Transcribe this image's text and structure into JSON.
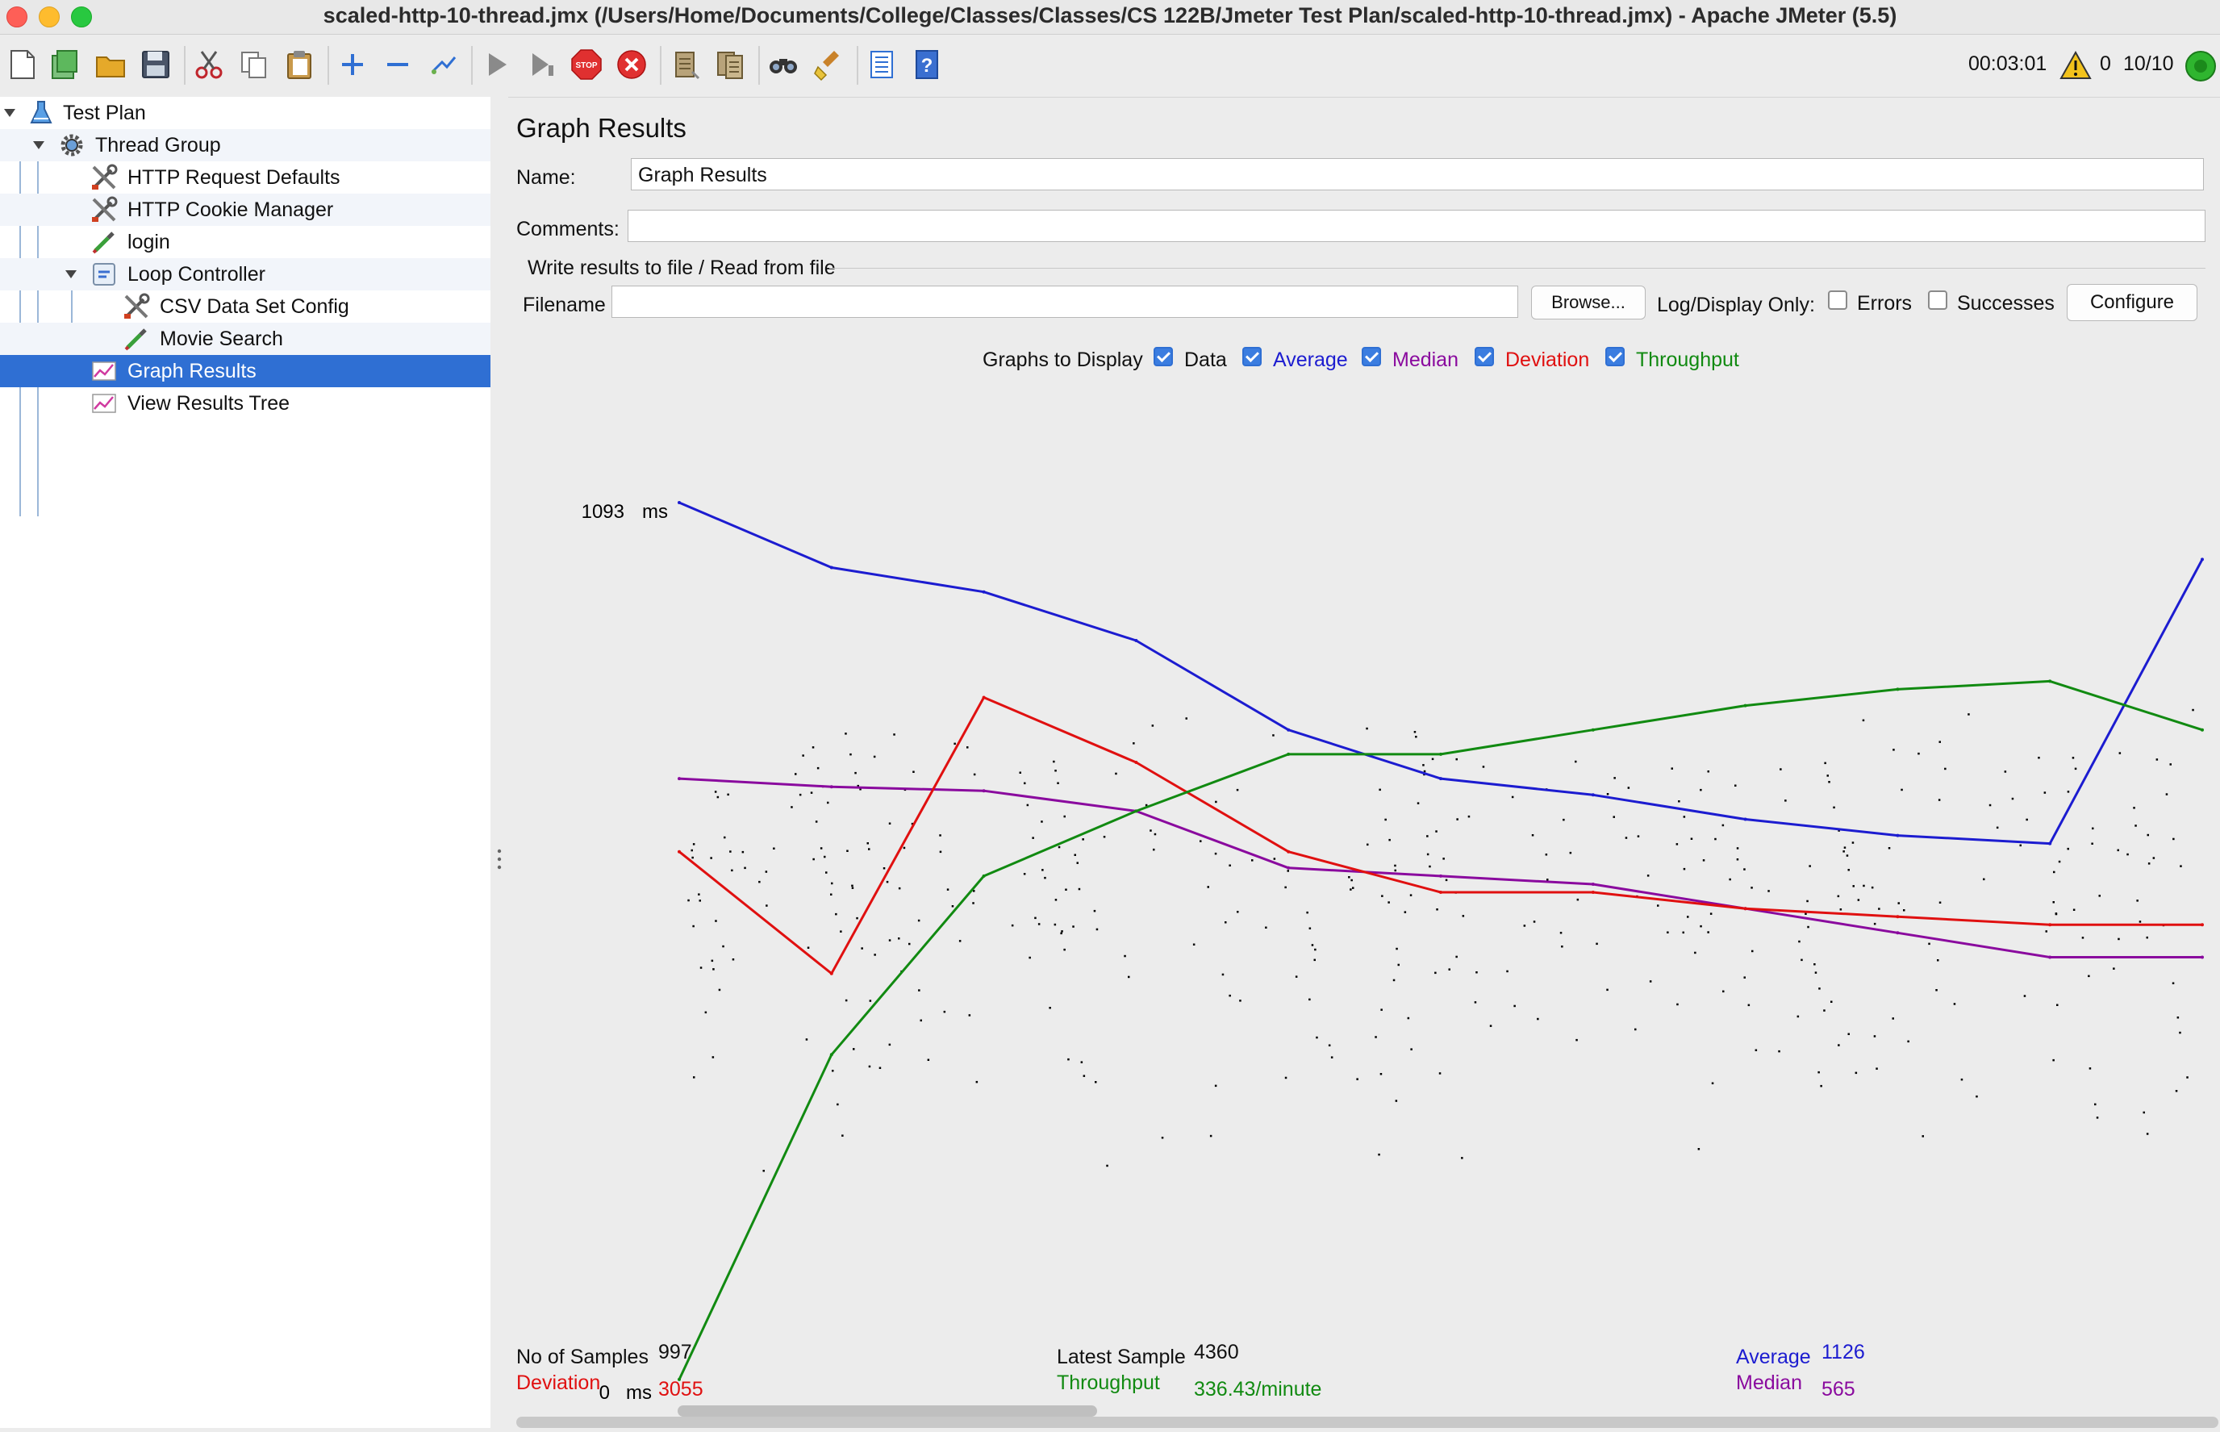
{
  "window": {
    "title": "scaled-http-10-thread.jmx (/Users/Home/Documents/College/Classes/Classes/CS 122B/Jmeter Test Plan/scaled-http-10-thread.jmx) - Apache JMeter (5.5)"
  },
  "toolbar": {
    "icons": [
      "new-icon",
      "templates-icon",
      "open-icon",
      "save-icon",
      "cut-icon",
      "copy-icon",
      "paste-icon",
      "expand-icon",
      "collapse-icon",
      "toggle-icon",
      "start-icon",
      "start-no-pauses-icon",
      "stop-icon",
      "shutdown-icon",
      "clear-icon",
      "clear-all-icon",
      "search-icon",
      "reset-search-icon",
      "function-helper-icon",
      "help-icon"
    ],
    "elapsed_time": "00:03:01",
    "warning_count": "0",
    "threads": "10/10",
    "colors": {
      "stop": "#e03030",
      "run_indicator": "#2fb52f",
      "warning": "#f2c21b"
    }
  },
  "tree": {
    "nodes": [
      {
        "label": "Test Plan",
        "icon": "flask-icon",
        "level": 0,
        "expanded": true
      },
      {
        "label": "Thread Group",
        "icon": "gear-icon",
        "level": 1,
        "expanded": true
      },
      {
        "label": "HTTP Request Defaults",
        "icon": "wrench-icon",
        "level": 2
      },
      {
        "label": "HTTP Cookie Manager",
        "icon": "wrench-icon",
        "level": 2
      },
      {
        "label": "login",
        "icon": "pipette-icon",
        "level": 2
      },
      {
        "label": "Loop Controller",
        "icon": "loop-controller-icon",
        "level": 2,
        "expanded": true
      },
      {
        "label": "CSV Data Set Config",
        "icon": "wrench-icon",
        "level": 3
      },
      {
        "label": "Movie Search",
        "icon": "pipette-icon",
        "level": 3
      },
      {
        "label": "Graph Results",
        "icon": "graph-icon",
        "level": 2,
        "selected": true
      },
      {
        "label": "View Results Tree",
        "icon": "graph-icon",
        "level": 2
      }
    ]
  },
  "panel": {
    "title": "Graph Results",
    "name_label": "Name:",
    "name_value": "Graph Results",
    "comments_label": "Comments:",
    "comments_value": "",
    "file_group_label": "Write results to file / Read from file",
    "filename_label": "Filename",
    "filename_value": "",
    "browse_label": "Browse...",
    "log_display_label": "Log/Display Only:",
    "errors_label": "Errors",
    "errors_checked": false,
    "successes_label": "Successes",
    "successes_checked": false,
    "configure_label": "Configure"
  },
  "graphs_to_display": {
    "label": "Graphs to Display",
    "options": [
      {
        "label": "Data",
        "checked": true,
        "color": "#000000"
      },
      {
        "label": "Average",
        "checked": true,
        "color": "#1c1cd0"
      },
      {
        "label": "Median",
        "checked": true,
        "color": "#8a0a9e"
      },
      {
        "label": "Deviation",
        "checked": true,
        "color": "#e01010"
      },
      {
        "label": "Throughput",
        "checked": true,
        "color": "#118a11"
      }
    ]
  },
  "chart_data": {
    "type": "line",
    "y_max_label": "1093",
    "y_max_unit": "ms",
    "y_min_label": "0",
    "y_min_unit": "ms",
    "ylim": [
      0,
      1093
    ],
    "x": [
      0,
      10,
      20,
      30,
      40,
      50,
      60,
      70,
      80,
      90,
      100
    ],
    "series": [
      {
        "name": "Average",
        "color": "#1c1cd0",
        "values": [
          1100,
          1020,
          990,
          930,
          820,
          760,
          740,
          710,
          690,
          680,
          1030
        ]
      },
      {
        "name": "Median",
        "color": "#8a0a9e",
        "values": [
          760,
          750,
          745,
          720,
          650,
          640,
          630,
          600,
          570,
          540,
          540
        ]
      },
      {
        "name": "Deviation",
        "color": "#e01010",
        "values": [
          670,
          520,
          860,
          780,
          670,
          620,
          620,
          600,
          590,
          580,
          580
        ]
      },
      {
        "name": "Throughput",
        "color": "#118a11",
        "values": [
          20,
          420,
          640,
          720,
          790,
          790,
          820,
          850,
          870,
          880,
          820
        ]
      }
    ]
  },
  "stats": {
    "samples_label": "No of Samples",
    "samples_value": "997",
    "latest_label": "Latest Sample",
    "latest_value": "4360",
    "average_label": "Average",
    "average_value": "1126",
    "deviation_label": "Deviation",
    "deviation_value": "3055",
    "throughput_label": "Throughput",
    "throughput_value": "336.43/minute",
    "median_label": "Median",
    "median_value": "565"
  }
}
